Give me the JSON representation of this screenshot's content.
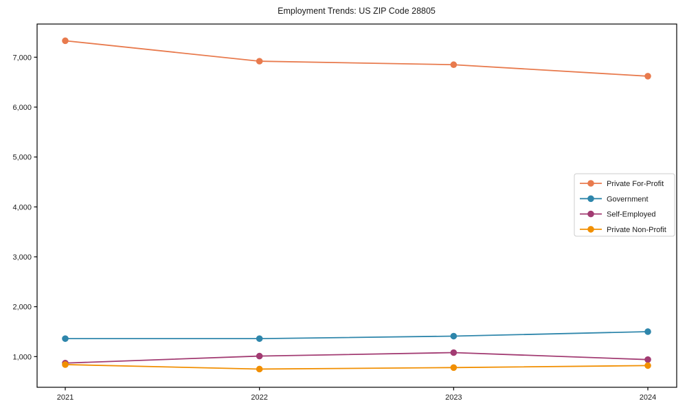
{
  "figure": {
    "title": "Employment Trends: US ZIP Code 28805"
  },
  "chart_data": {
    "type": "line",
    "title": "Employment Trends: US ZIP Code 28805",
    "categories": [
      "2021",
      "2022",
      "2023",
      "2024"
    ],
    "series": [
      {
        "name": "Private For-Profit",
        "color": "#E87A4D",
        "values": [
          7330,
          6920,
          6850,
          6620
        ]
      },
      {
        "name": "Government",
        "color": "#2E86AB",
        "values": [
          1360,
          1360,
          1410,
          1500
        ]
      },
      {
        "name": "Self-Employed",
        "color": "#A23B72",
        "values": [
          870,
          1010,
          1080,
          940
        ]
      },
      {
        "name": "Private Non-Profit",
        "color": "#F18F01",
        "values": [
          840,
          750,
          780,
          820
        ]
      }
    ],
    "xlabel": "",
    "ylabel": "",
    "xtick_labels": [
      "2021",
      "2022",
      "2023",
      "2024"
    ],
    "yticks": [
      1000,
      2000,
      3000,
      4000,
      5000,
      6000,
      7000
    ],
    "ytick_labels": [
      "1,000",
      "2,000",
      "3,000",
      "4,000",
      "5,000",
      "6,000",
      "7,000"
    ],
    "ylim": [
      385,
      7665
    ],
    "grid": false,
    "frame": "box",
    "marker": "circle",
    "legend_position": "center-right",
    "colors": {
      "spine": "#000000",
      "tick_text": "#1a1a1a",
      "legend_border": "#cccccc",
      "background": "#ffffff"
    }
  }
}
